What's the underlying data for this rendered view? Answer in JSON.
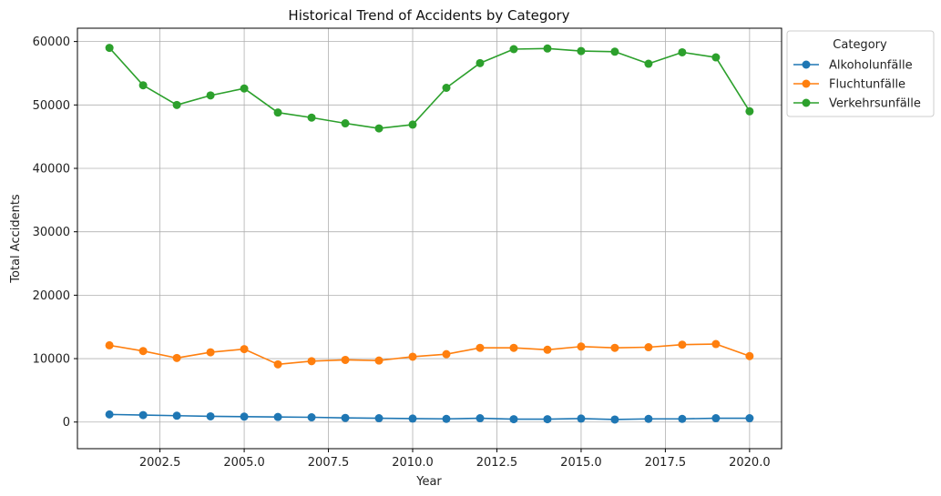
{
  "chart_data": {
    "type": "line",
    "title": "Historical Trend of Accidents by Category",
    "xlabel": "Year",
    "ylabel": "Total Accidents",
    "xlim": [
      2000.05,
      2020.95
    ],
    "ylim": [
      -4200,
      62100
    ],
    "xticks": [
      2002.5,
      2005.0,
      2007.5,
      2010.0,
      2012.5,
      2015.0,
      2017.5,
      2020.0
    ],
    "xtick_labels": [
      "2002.5",
      "2005.0",
      "2007.5",
      "2010.0",
      "2012.5",
      "2015.0",
      "2017.5",
      "2020.0"
    ],
    "yticks": [
      0,
      10000,
      20000,
      30000,
      40000,
      50000,
      60000
    ],
    "ytick_labels": [
      "0",
      "10000",
      "20000",
      "30000",
      "40000",
      "50000",
      "60000"
    ],
    "grid": true,
    "legend": {
      "title": "Category",
      "placement": "outside-top-right"
    },
    "x": [
      2001,
      2002,
      2003,
      2004,
      2005,
      2006,
      2007,
      2008,
      2009,
      2010,
      2011,
      2012,
      2013,
      2014,
      2015,
      2016,
      2017,
      2018,
      2019,
      2020
    ],
    "series": [
      {
        "name": "Alkoholunfälle",
        "color": "#1f77b4",
        "values": [
          1200,
          1100,
          1000,
          900,
          850,
          800,
          750,
          650,
          600,
          550,
          500,
          600,
          450,
          450,
          550,
          400,
          500,
          500,
          600,
          600
        ]
      },
      {
        "name": "Fluchtunfälle",
        "color": "#ff7f0e",
        "values": [
          12100,
          11200,
          10100,
          11000,
          11500,
          9100,
          9600,
          9800,
          9700,
          10300,
          10700,
          11700,
          11700,
          11400,
          11900,
          11700,
          11800,
          12200,
          12300,
          10400
        ]
      },
      {
        "name": "Verkehrsunfälle",
        "color": "#2ca02c",
        "values": [
          59000,
          53100,
          50000,
          51500,
          52600,
          48800,
          48000,
          47100,
          46300,
          46900,
          52700,
          56600,
          58800,
          58900,
          58500,
          58400,
          56500,
          58300,
          57500,
          49000
        ]
      }
    ]
  }
}
